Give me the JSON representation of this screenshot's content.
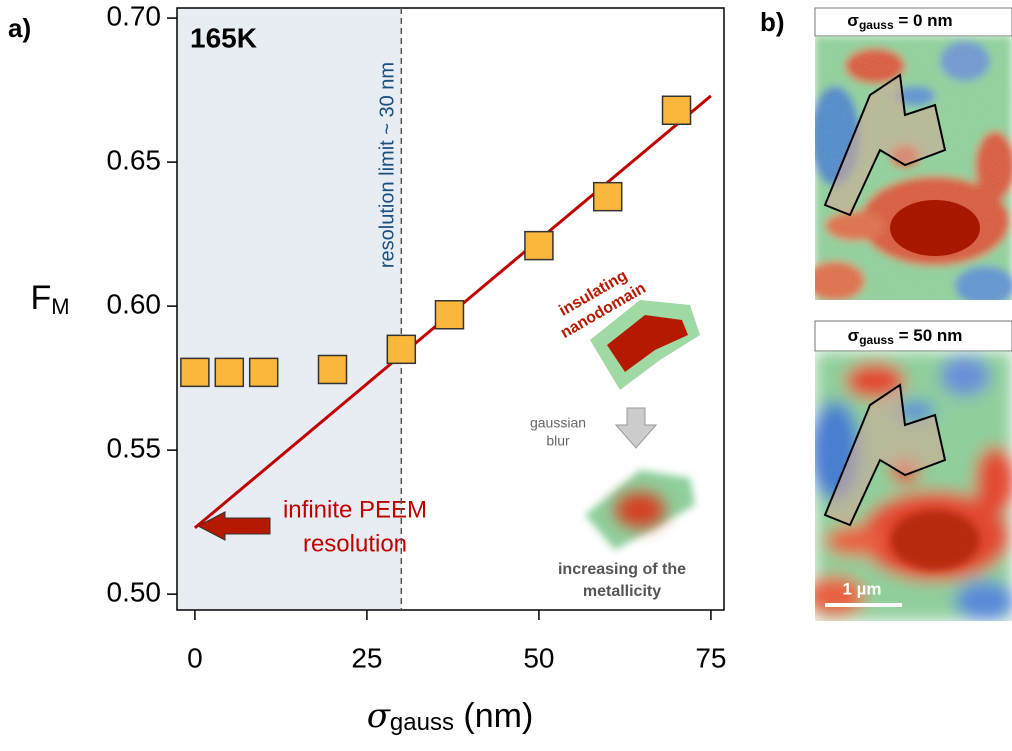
{
  "chart_data": {
    "type": "scatter",
    "panel_a_label": "a)",
    "panel_b_label": "b)",
    "temperature": "165K",
    "xlabel": [
      "σ",
      "gauss",
      " (nm)"
    ],
    "ylabel": [
      "F",
      "M"
    ],
    "x": [
      0,
      5,
      10,
      20,
      30,
      37,
      50,
      60,
      70
    ],
    "values": [
      0.577,
      0.577,
      0.577,
      0.578,
      0.585,
      0.597,
      0.621,
      0.638,
      0.668
    ],
    "color": "#fbb63c",
    "fit": {
      "x": [
        0,
        75
      ],
      "values": [
        0.523,
        0.673
      ],
      "color": "#c00000"
    },
    "xlim": [
      -2.6,
      76.9
    ],
    "ylim": [
      0.4945,
      0.7035
    ],
    "xticks": [
      0,
      25,
      50,
      75
    ],
    "yticks": [
      {
        "value": 0.5,
        "label": "0.50"
      },
      {
        "value": 0.55,
        "label": "0.55"
      },
      {
        "value": 0.6,
        "label": "0.60"
      },
      {
        "value": 0.65,
        "label": "0.65"
      },
      {
        "value": 0.7,
        "label": "0.70"
      }
    ],
    "resolution_limit": 30,
    "annotations": {
      "resolution": "resolution limit ~ 30 nm",
      "insulating": [
        "insulating",
        "nanodomain"
      ],
      "blur": [
        "gaussian",
        "blur"
      ],
      "infinite": [
        "infinite PEEM",
        "resolution"
      ],
      "metallicity": [
        "increasing of the",
        "metallicity"
      ]
    },
    "image_titles": [
      [
        "σ",
        "gauss",
        " = 0 nm"
      ],
      [
        "σ",
        "gauss",
        " = 50 nm"
      ]
    ],
    "scale_bar": "1 µm"
  }
}
